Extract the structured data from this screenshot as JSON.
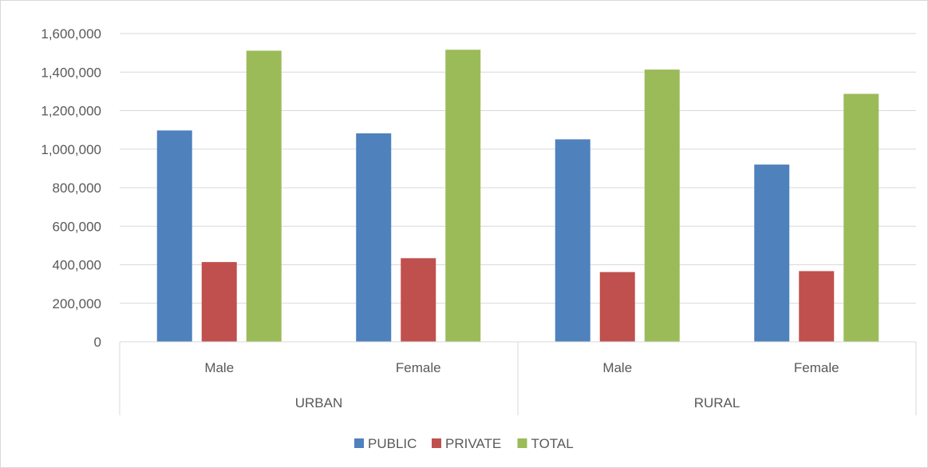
{
  "chart_data": {
    "type": "bar",
    "categories": [
      "Male",
      "Female",
      "Male",
      "Female"
    ],
    "groups": [
      {
        "label": "URBAN",
        "span": [
          0,
          1
        ]
      },
      {
        "label": "RURAL",
        "span": [
          2,
          3
        ]
      }
    ],
    "series": [
      {
        "name": "PUBLIC",
        "color": "#4f81bd",
        "values": [
          1097000,
          1082000,
          1051000,
          920000
        ]
      },
      {
        "name": "PRIVATE",
        "color": "#c0504d",
        "values": [
          414000,
          434000,
          362000,
          367000
        ]
      },
      {
        "name": "TOTAL",
        "color": "#9bbb59",
        "values": [
          1511000,
          1516000,
          1413000,
          1287000
        ]
      }
    ],
    "yticks": [
      "0",
      "200,000",
      "400,000",
      "600,000",
      "800,000",
      "1,000,000",
      "1,200,000",
      "1,400,000",
      "1,600,000"
    ],
    "ylim": [
      0,
      1600000
    ],
    "grid": true,
    "legend_position": "bottom"
  }
}
